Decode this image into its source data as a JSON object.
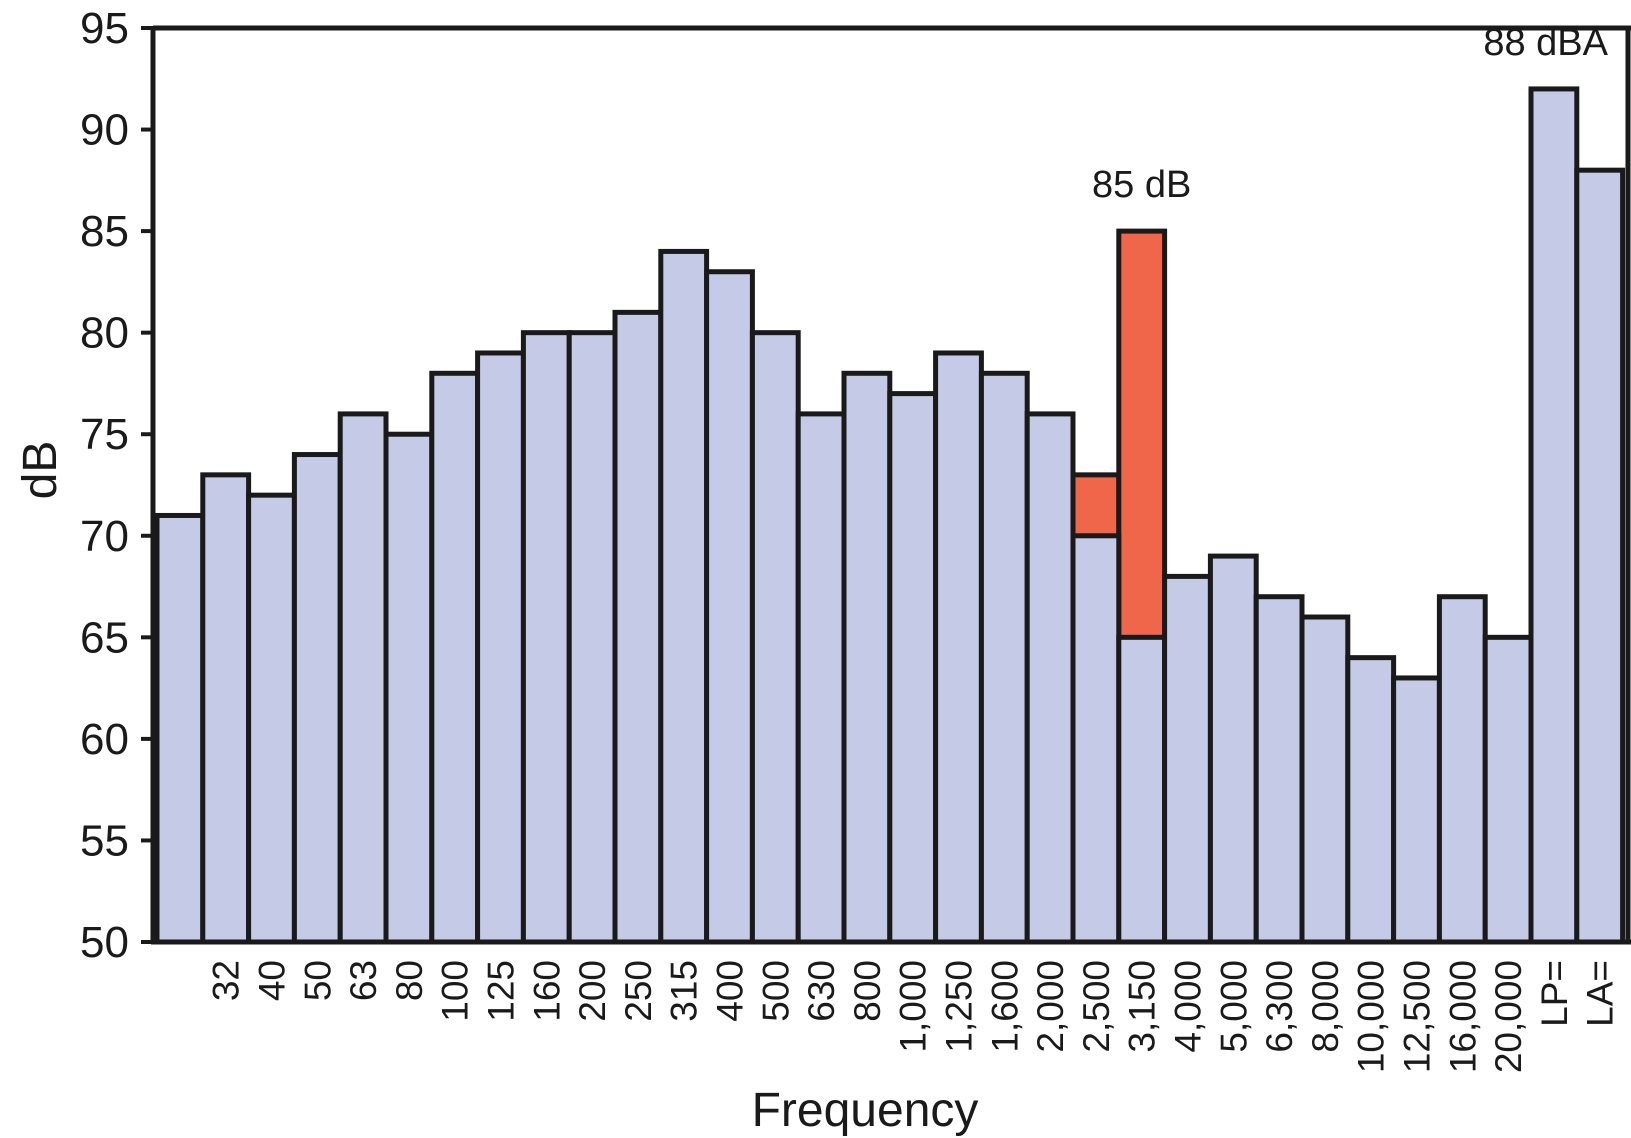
{
  "chart_data": {
    "type": "bar",
    "xlabel": "Frequency",
    "ylabel": "dB",
    "ylim": [
      50,
      95
    ],
    "yticks": [
      50,
      55,
      60,
      65,
      70,
      75,
      80,
      85,
      90,
      95
    ],
    "categories": [
      "",
      "32",
      "40",
      "50",
      "63",
      "80",
      "100",
      "125",
      "160",
      "200",
      "250",
      "315",
      "400",
      "500",
      "630",
      "800",
      "1,000",
      "1,250",
      "1,600",
      "2,000",
      "2,500",
      "3,150",
      "4,000",
      "5,000",
      "6,300",
      "8,000",
      "10,000",
      "12,500",
      "16,000",
      "20,000",
      "LP=",
      "LA="
    ],
    "series": [
      {
        "values": [
          71,
          73,
          72,
          74,
          76,
          75,
          78,
          79,
          80,
          80,
          81,
          84,
          83,
          80,
          76,
          78,
          77,
          79,
          78,
          76,
          70,
          65,
          68,
          69,
          67,
          66,
          64,
          63,
          67,
          65,
          92,
          88
        ],
        "color": "#c5cae6"
      },
      {
        "values": [
          null,
          null,
          null,
          null,
          null,
          null,
          null,
          null,
          null,
          null,
          null,
          null,
          null,
          null,
          null,
          null,
          null,
          null,
          null,
          null,
          73,
          85,
          null,
          null,
          null,
          null,
          null,
          null,
          null,
          null,
          null,
          null
        ],
        "color": "#ef664a"
      }
    ],
    "annotations": [
      {
        "text": "85 dB",
        "category": "3,150",
        "value": 85
      },
      {
        "text": "88 dBA",
        "category": "LP=",
        "value": 92
      }
    ],
    "grid": false,
    "legend": "none"
  }
}
